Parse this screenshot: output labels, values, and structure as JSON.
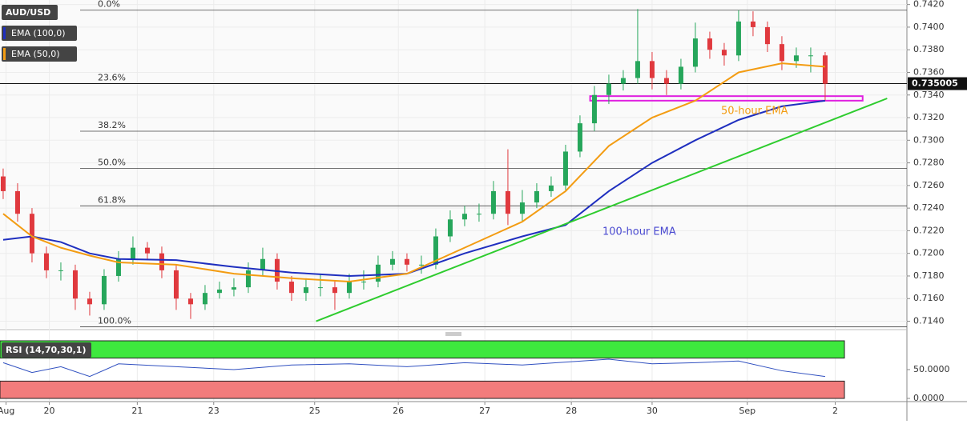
{
  "chart_data": {
    "type": "candlestick",
    "symbol": "AUD/USD",
    "xlim": [
      -0.22,
      62.67
    ],
    "xticks": [
      {
        "value": 0.2,
        "label": "Aug"
      },
      {
        "value": 3.2,
        "label": "20"
      },
      {
        "value": 9.3,
        "label": "21"
      },
      {
        "value": 14.6,
        "label": "23"
      },
      {
        "value": 21.6,
        "label": "25"
      },
      {
        "value": 27.4,
        "label": "26"
      },
      {
        "value": 33.4,
        "label": "27"
      },
      {
        "value": 39.4,
        "label": "28"
      },
      {
        "value": 45,
        "label": "30"
      },
      {
        "value": 51.6,
        "label": "Sep"
      },
      {
        "value": 57.7,
        "label": "2"
      }
    ],
    "ylim": [
      0.7134,
      0.7424
    ],
    "yticks": [
      {
        "value": 0.714,
        "label": "0.7140"
      },
      {
        "value": 0.716,
        "label": "0.7160"
      },
      {
        "value": 0.718,
        "label": "0.7180"
      },
      {
        "value": 0.72,
        "label": "0.7200"
      },
      {
        "value": 0.722,
        "label": "0.7220"
      },
      {
        "value": 0.724,
        "label": "0.7240"
      },
      {
        "value": 0.726,
        "label": "0.7260"
      },
      {
        "value": 0.728,
        "label": "0.7280"
      },
      {
        "value": 0.73,
        "label": "0.7300"
      },
      {
        "value": 0.732,
        "label": "0.7320"
      },
      {
        "value": 0.734,
        "label": "0.7340"
      },
      {
        "value": 0.736,
        "label": "0.7360"
      },
      {
        "value": 0.738,
        "label": "0.7380"
      },
      {
        "value": 0.74,
        "label": "0.7400"
      },
      {
        "value": 0.742,
        "label": "0.7420"
      }
    ],
    "grid": true,
    "up_color": "#26a65b",
    "down_color": "#e0393e",
    "open": [
      0.7268,
      0.7255,
      0.7235,
      0.72,
      0.7185,
      0.7185,
      0.716,
      0.7155,
      0.718,
      0.7195,
      0.7205,
      0.72,
      0.7185,
      0.716,
      0.7155,
      0.7165,
      0.7168,
      0.717,
      0.7185,
      0.7195,
      0.7175,
      0.7165,
      0.717,
      0.717,
      0.7165,
      0.7175,
      0.7175,
      0.719,
      0.7195,
      0.719,
      0.719,
      0.7215,
      0.723,
      0.7235,
      0.7235,
      0.7255,
      0.7235,
      0.7245,
      0.7255,
      0.726,
      0.729,
      0.7315,
      0.734,
      0.735,
      0.7355,
      0.737,
      0.7355,
      0.735,
      0.7365,
      0.739,
      0.738,
      0.7375,
      0.7405,
      0.74,
      0.7385,
      0.737,
      0.7375,
      0.7375
    ],
    "high": [
      0.7275,
      0.7262,
      0.724,
      0.7206,
      0.7192,
      0.719,
      0.7166,
      0.7186,
      0.7202,
      0.7215,
      0.721,
      0.7206,
      0.719,
      0.7165,
      0.7172,
      0.7175,
      0.7178,
      0.7192,
      0.7205,
      0.72,
      0.718,
      0.7178,
      0.7182,
      0.7176,
      0.7182,
      0.7185,
      0.7198,
      0.7202,
      0.72,
      0.7198,
      0.7222,
      0.7238,
      0.7242,
      0.7244,
      0.7264,
      0.7292,
      0.7256,
      0.7262,
      0.7268,
      0.7296,
      0.7322,
      0.7348,
      0.7358,
      0.7362,
      0.7416,
      0.7378,
      0.7362,
      0.7372,
      0.7404,
      0.7396,
      0.7386,
      0.7415,
      0.7414,
      0.7405,
      0.7392,
      0.7382,
      0.7382,
      0.7378
    ],
    "low": [
      0.7248,
      0.7228,
      0.7192,
      0.7178,
      0.7176,
      0.715,
      0.7145,
      0.715,
      0.7175,
      0.719,
      0.7194,
      0.7178,
      0.715,
      0.7142,
      0.715,
      0.716,
      0.7162,
      0.7165,
      0.718,
      0.7168,
      0.7158,
      0.7158,
      0.7162,
      0.715,
      0.716,
      0.7168,
      0.717,
      0.7185,
      0.7184,
      0.7182,
      0.7186,
      0.721,
      0.7224,
      0.7228,
      0.723,
      0.7225,
      0.7228,
      0.724,
      0.725,
      0.7256,
      0.7285,
      0.7308,
      0.7332,
      0.7344,
      0.735,
      0.7345,
      0.734,
      0.7345,
      0.736,
      0.7372,
      0.7366,
      0.737,
      0.7392,
      0.7378,
      0.7362,
      0.7364,
      0.736,
      0.7335
    ],
    "close": [
      0.7255,
      0.7235,
      0.72,
      0.7185,
      0.7185,
      0.716,
      0.7155,
      0.718,
      0.7195,
      0.7205,
      0.72,
      0.7185,
      0.716,
      0.7155,
      0.7165,
      0.7168,
      0.717,
      0.7185,
      0.7195,
      0.7175,
      0.7165,
      0.717,
      0.717,
      0.7165,
      0.7175,
      0.7175,
      0.719,
      0.7195,
      0.719,
      0.719,
      0.7215,
      0.723,
      0.7235,
      0.7235,
      0.7255,
      0.7235,
      0.7245,
      0.7255,
      0.726,
      0.729,
      0.7315,
      0.734,
      0.735,
      0.7355,
      0.737,
      0.7355,
      0.735,
      0.7365,
      0.739,
      0.738,
      0.7375,
      0.7405,
      0.74,
      0.7385,
      0.737,
      0.7375,
      0.7375,
      0.735
    ],
    "ema_x": [
      0,
      2,
      4,
      6,
      8,
      12,
      16,
      20,
      24,
      28,
      32,
      36,
      39,
      42,
      45,
      48,
      51,
      54,
      57
    ],
    "series": [
      {
        "name": "EMA (100,0)",
        "color": "#1f2fbf",
        "values": [
          0.7212,
          0.7215,
          0.721,
          0.72,
          0.7195,
          0.7194,
          0.7188,
          0.7183,
          0.718,
          0.7182,
          0.72,
          0.7215,
          0.7225,
          0.7255,
          0.728,
          0.73,
          0.7318,
          0.733,
          0.7335
        ]
      },
      {
        "name": "EMA (50,0)",
        "color": "#f39c12",
        "values": [
          0.7235,
          0.7215,
          0.7205,
          0.7198,
          0.7192,
          0.719,
          0.7182,
          0.7178,
          0.7175,
          0.7182,
          0.7205,
          0.7228,
          0.7255,
          0.7295,
          0.732,
          0.7335,
          0.736,
          0.7368,
          0.7365
        ]
      }
    ],
    "fib_levels": [
      {
        "label": "0.0%",
        "value": 0.7415
      },
      {
        "label": "23.6%",
        "value": 0.735
      },
      {
        "label": "38.2%",
        "value": 0.7308
      },
      {
        "label": "50.0%",
        "value": 0.7275
      },
      {
        "label": "61.8%",
        "value": 0.7242
      },
      {
        "label": "100.0%",
        "value": 0.7135
      }
    ],
    "last_price": 0.735005,
    "trendline": {
      "x": [
        21.7,
        61.3
      ],
      "values": [
        0.714,
        0.7337
      ],
      "color": "#2ecc2e"
    },
    "support_zone": {
      "x": [
        40.7,
        59.6
      ],
      "values": [
        0.7335,
        0.7339
      ],
      "color": "#e020e0"
    },
    "annotations": [
      {
        "text": "50-hour EMA",
        "color": "#f39c12"
      },
      {
        "text": "100-hour EMA",
        "color": "#4a4ad0"
      }
    ],
    "rsi": {
      "label": "RSI (14,70,30,1)",
      "overbought": 70,
      "oversold": 30,
      "ylim": [
        0,
        100
      ],
      "yticks": [
        {
          "value": 50,
          "label": "50.0000"
        },
        {
          "value": 0,
          "label": "0.0000"
        }
      ],
      "color": "#3050c0",
      "values": [
        62,
        45,
        55,
        38,
        60,
        55,
        50,
        58,
        60,
        55,
        62,
        58,
        63,
        68,
        60,
        62,
        65,
        48,
        38
      ]
    }
  }
}
